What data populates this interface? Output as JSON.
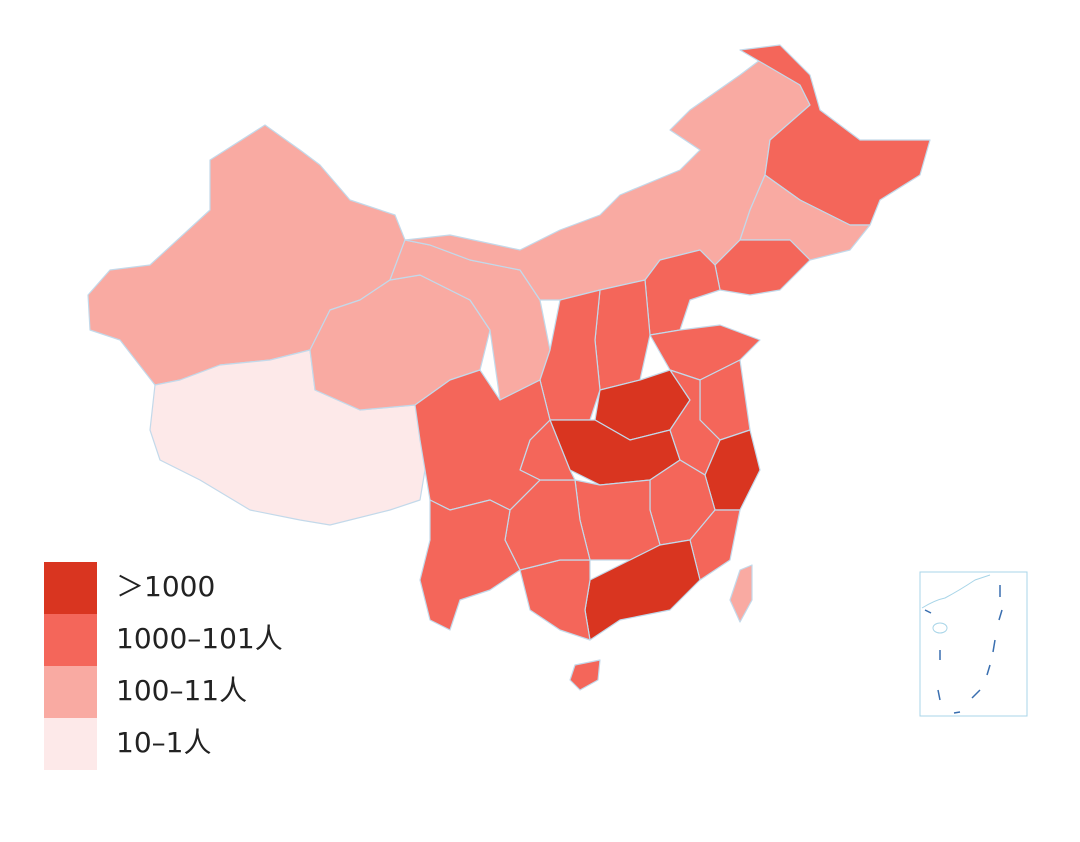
{
  "legend": {
    "items": [
      {
        "label": "＞1000",
        "color": "#d93520"
      },
      {
        "label": "1000–101人",
        "color": "#f4665a"
      },
      {
        "label": "100–11人",
        "color": "#f9aaa2"
      },
      {
        "label": "10–1人",
        "color": "#fde9e9"
      }
    ]
  }
}
